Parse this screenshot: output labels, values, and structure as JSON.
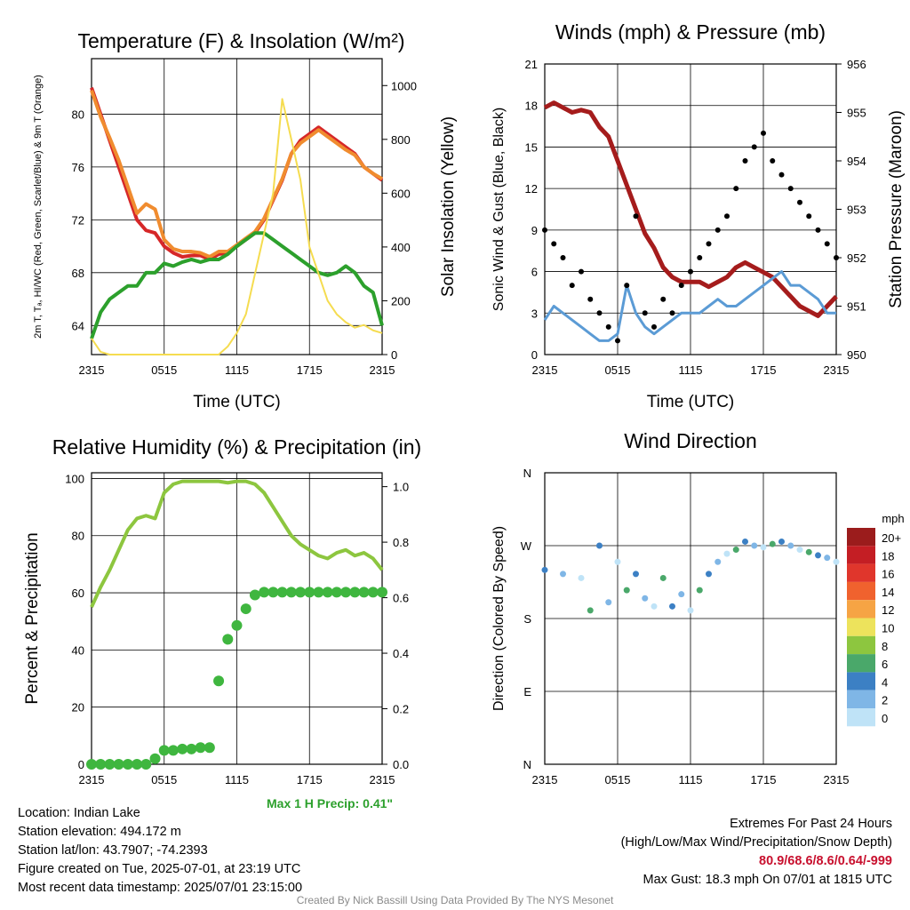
{
  "chart_data": [
    {
      "id": "temp",
      "type": "line",
      "title": "Temperature (F) & Insolation (W/m²)",
      "xlabel": "Time (UTC)",
      "ylabel": "2m T, Tₐ, HI/WC (Red, Green, Scarlet/Blue) & 9m T (Orange)",
      "y2label": "Solar Insolation (Yellow)",
      "x_ticks": [
        "2315",
        "0515",
        "1115",
        "1715",
        "2315"
      ],
      "y_ticks": [
        64,
        68,
        72,
        76,
        80
      ],
      "y2_ticks": [
        0,
        200,
        400,
        600,
        800,
        1000
      ],
      "ylim": [
        61.8,
        84.2
      ],
      "y2lim": [
        0,
        1100
      ],
      "series": [
        {
          "color": "#d62728",
          "y": [
            82,
            80,
            78,
            76,
            74,
            72,
            71.2,
            71,
            70,
            69.5,
            69.2,
            69.3,
            69.3,
            69,
            69.4,
            69.5,
            70,
            70.5,
            71,
            72,
            73.5,
            75,
            77,
            78,
            78.5,
            79,
            78.5,
            78,
            77.5,
            77,
            76,
            75.5,
            75
          ]
        },
        {
          "color": "#f08c2f",
          "y": [
            81.8,
            79.8,
            78.2,
            76.5,
            74.5,
            72.5,
            73.2,
            72.8,
            70.5,
            69.8,
            69.6,
            69.6,
            69.5,
            69.2,
            69.6,
            69.6,
            70.1,
            70.6,
            71.1,
            72.1,
            73.6,
            75.1,
            77,
            77.8,
            78.3,
            78.8,
            78.3,
            77.8,
            77.3,
            76.9,
            76,
            75.5,
            75.1
          ]
        },
        {
          "color": "#2ca02c",
          "y": [
            63,
            65,
            66,
            66.5,
            67,
            67,
            68,
            68,
            68.7,
            68.5,
            68.8,
            69,
            68.8,
            69,
            69,
            69.4,
            70,
            70.5,
            71,
            71,
            70.5,
            70,
            69.5,
            69,
            68.5,
            68,
            67.8,
            68,
            68.5,
            68,
            67,
            66.5,
            64
          ]
        },
        {
          "color": "#f5dc50",
          "y2": [
            60,
            10,
            0,
            0,
            0,
            0,
            0,
            0,
            0,
            0,
            0,
            0,
            0,
            0,
            0,
            30,
            80,
            150,
            300,
            450,
            600,
            950,
            800,
            650,
            400,
            300,
            200,
            150,
            120,
            100,
            110,
            90,
            80
          ]
        }
      ]
    },
    {
      "id": "winds",
      "type": "line",
      "title": "Winds (mph) & Pressure (mb)",
      "xlabel": "Time (UTC)",
      "ylabel": "Sonic Wind & Gust (Blue, Black)",
      "y2label": "Station Pressure (Maroon)",
      "x_ticks": [
        "2315",
        "0515",
        "1115",
        "1715",
        "2315"
      ],
      "y_ticks": [
        0,
        3,
        6,
        9,
        12,
        15,
        18,
        21
      ],
      "y2_ticks": [
        950,
        951,
        952,
        953,
        954,
        955,
        956
      ],
      "ylim": [
        0,
        21
      ],
      "y2lim": [
        950,
        956
      ],
      "series": [
        {
          "name": "pressure",
          "color": "#a51c1c",
          "y2": [
            955.1,
            955.2,
            955.1,
            955,
            955.05,
            955,
            954.7,
            954.5,
            954,
            953.5,
            953,
            952.5,
            952.2,
            951.8,
            951.6,
            951.5,
            951.5,
            951.5,
            951.4,
            951.5,
            951.6,
            951.8,
            951.9,
            951.8,
            951.7,
            951.6,
            951.4,
            951.2,
            951,
            950.9,
            950.8,
            951,
            951.2
          ]
        },
        {
          "name": "wind",
          "color": "#5b9bd5",
          "y": [
            2.5,
            3.5,
            3,
            2.5,
            2,
            1.5,
            1,
            1,
            1.5,
            5,
            3,
            2,
            1.5,
            2,
            2.5,
            3,
            3,
            3,
            3.5,
            4,
            3.5,
            3.5,
            4,
            4.5,
            5,
            5.5,
            6,
            5,
            5,
            4.5,
            4,
            3,
            3
          ]
        },
        {
          "name": "gust",
          "color": "#000000",
          "points": [
            [
              0,
              9
            ],
            [
              1,
              8
            ],
            [
              2,
              7
            ],
            [
              3,
              5
            ],
            [
              4,
              6
            ],
            [
              5,
              4
            ],
            [
              6,
              3
            ],
            [
              7,
              2
            ],
            [
              8,
              1
            ],
            [
              9,
              5
            ],
            [
              10,
              10
            ],
            [
              11,
              3
            ],
            [
              12,
              2
            ],
            [
              13,
              4
            ],
            [
              14,
              3
            ],
            [
              15,
              5
            ],
            [
              16,
              6
            ],
            [
              17,
              7
            ],
            [
              18,
              8
            ],
            [
              19,
              9
            ],
            [
              20,
              10
            ],
            [
              21,
              12
            ],
            [
              22,
              14
            ],
            [
              23,
              15
            ],
            [
              24,
              16
            ],
            [
              25,
              14
            ],
            [
              26,
              13
            ],
            [
              27,
              12
            ],
            [
              28,
              11
            ],
            [
              29,
              10
            ],
            [
              30,
              9
            ],
            [
              31,
              8
            ],
            [
              32,
              7
            ]
          ]
        }
      ]
    },
    {
      "id": "rh",
      "type": "line",
      "title": "Relative Humidity (%) & Precipitation (in)",
      "ylabel": "Percent & Precipitation",
      "x_ticks": [
        "2315",
        "0515",
        "1115",
        "1715",
        "2315"
      ],
      "y_ticks": [
        0,
        20,
        40,
        60,
        80,
        100
      ],
      "y2_ticks": [
        "0.0",
        "0.2",
        "0.4",
        "0.6",
        "0.8",
        "1.0"
      ],
      "ylim": [
        0,
        102
      ],
      "y2lim": [
        0,
        1.05
      ],
      "series": [
        {
          "color": "#8dc63f",
          "y": [
            55,
            62,
            68,
            75,
            82,
            86,
            87,
            86,
            95,
            98,
            99,
            99,
            99,
            99,
            99,
            98.5,
            99,
            99,
            98,
            95,
            90,
            85,
            80,
            77,
            75,
            73,
            72,
            74,
            75,
            73,
            74,
            72,
            68
          ]
        },
        {
          "color": "#3fb63f",
          "y2": [
            0,
            0,
            0,
            0,
            0,
            0,
            0,
            0.02,
            0.05,
            0.05,
            0.055,
            0.055,
            0.06,
            0.06,
            0.3,
            0.45,
            0.5,
            0.56,
            0.61,
            0.62,
            0.62,
            0.62,
            0.62,
            0.62,
            0.62,
            0.62,
            0.62,
            0.62,
            0.62,
            0.62,
            0.62,
            0.62,
            0.62
          ]
        }
      ],
      "annotation": "Max 1 H Precip: 0.41\""
    },
    {
      "id": "dir",
      "type": "scatter",
      "title": "Wind Direction",
      "ylabel": "Direction (Colored By Speed)",
      "x_ticks": [
        "2315",
        "0515",
        "1115",
        "1715",
        "2315"
      ],
      "y_ticks": [
        "N",
        "E",
        "S",
        "W",
        "N"
      ],
      "legend_title": "mph",
      "legend": [
        {
          "label": "20+",
          "color": "#9b1c1c"
        },
        {
          "label": "18",
          "color": "#c41e24"
        },
        {
          "label": "16",
          "color": "#e0362c"
        },
        {
          "label": "14",
          "color": "#f0622e"
        },
        {
          "label": "12",
          "color": "#f6a444"
        },
        {
          "label": "10",
          "color": "#ede35c"
        },
        {
          "label": "8",
          "color": "#8dc63f"
        },
        {
          "label": "6",
          "color": "#4aa86a"
        },
        {
          "label": "4",
          "color": "#3c80c4"
        },
        {
          "label": "2",
          "color": "#7fb6e6"
        },
        {
          "label": "0",
          "color": "#bfe3f7"
        }
      ],
      "points": [
        [
          0,
          240
        ],
        [
          2,
          235
        ],
        [
          4,
          230
        ],
        [
          5,
          190
        ],
        [
          6,
          270
        ],
        [
          7,
          200
        ],
        [
          8,
          250
        ],
        [
          9,
          215
        ],
        [
          10,
          235
        ],
        [
          11,
          205
        ],
        [
          12,
          195
        ],
        [
          13,
          230
        ],
        [
          14,
          195
        ],
        [
          15,
          210
        ],
        [
          16,
          190
        ],
        [
          17,
          215
        ],
        [
          18,
          235
        ],
        [
          19,
          250
        ],
        [
          20,
          260
        ],
        [
          21,
          265
        ],
        [
          22,
          275
        ],
        [
          23,
          270
        ],
        [
          24,
          268
        ],
        [
          25,
          272
        ],
        [
          26,
          275
        ],
        [
          27,
          270
        ],
        [
          28,
          265
        ],
        [
          29,
          262
        ],
        [
          30,
          258
        ],
        [
          31,
          255
        ],
        [
          32,
          250
        ]
      ]
    }
  ],
  "info_left": [
    "Location: Indian Lake",
    "Station elevation: 494.172 m",
    "Station lat/lon: 43.7907; -74.2393",
    "Figure created on Tue, 2025-07-01, at 23:19 UTC",
    "Most recent data timestamp: 2025/07/01 23:15:00"
  ],
  "info_right": {
    "title": "Extremes For Past 24 Hours",
    "subtitle": "(High/Low/Max Wind/Precipitation/Snow Depth)",
    "values": "80.9/68.6/8.6/0.64/-999",
    "gust": "Max Gust: 18.3 mph On 07/01 at 1815 UTC"
  },
  "credit": "Created By Nick Bassill Using Data Provided By The NYS Mesonet"
}
